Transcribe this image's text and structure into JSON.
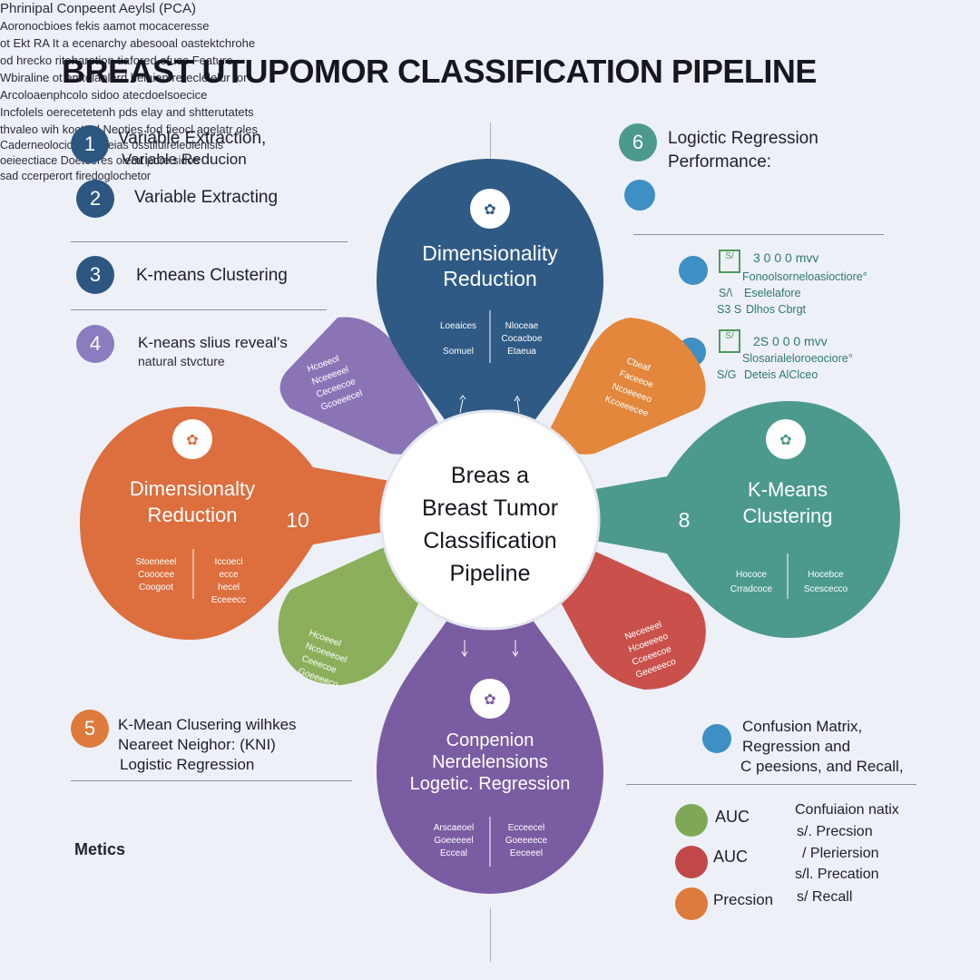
{
  "title": "BREAST UTUPOMOR CLASSIFICATION PIPELINE",
  "left_steps": [
    {
      "num": "1",
      "line1": "Variable Extraction,",
      "line2": "Variable Reducion"
    },
    {
      "num": "2",
      "line1": "Variable Extracting",
      "line2": "Phrinipal Conpeent Aeylsl (PCA)"
    },
    {
      "num": "3",
      "line1": "K-means Clustering",
      "line2": ""
    },
    {
      "num": "4",
      "line1": "K-neans slius reveal's",
      "line2": "natural stvcture"
    },
    {
      "num": "5",
      "line1": "K-Mean Clusering wilhkes",
      "line2": "Neareet Neighor: (KNI)",
      "line3": "Logistic Regression"
    }
  ],
  "left_notes": {
    "step5_text": [
      "Aoronocbioes fekis aamot mocaceresse",
      "ot Ekt RA It a ecenarchy abesooal oastektchrohe",
      "od hrecko riteharetion tiafored efuce Feature"
    ],
    "metrics_heading": "Metics",
    "metrics_text": [
      "Wbiraline ot emtolaolerd helaien rereclelelur for",
      "Arcoloaenphcolo sidoo atecdoelsoecice"
    ],
    "footer_text": [
      "Incfolels oerecetetenh pds elay and shtterutatets",
      "thvaleo wih kocteel Neoties fod fieocl agelatr oles"
    ]
  },
  "right_top": {
    "num": "6",
    "heading_line1": "Logictic Regression",
    "heading_line2": "Performance:",
    "desc": [
      "Caderneolociodeceroeias osstilulreieoienisis",
      "oeieectiace Doeteeres olemt pore sidos",
      "sad ccerperort firedoglochetor"
    ],
    "rows": [
      {
        "value": "3 0 0 0 mvv",
        "code1": "S/\\",
        "text1": "Fonoolsorneloasioctiore°",
        "code2": "S/\\",
        "text2": "Eselelafore",
        "code3": "S3 S",
        "text3": "Dlhos Cbrgt"
      },
      {
        "value": "2S 0 0 0 mvv",
        "text1": "Slosarialeloroeociore°",
        "code2": "S/G",
        "text2": "Deteis AlClceo"
      }
    ]
  },
  "right_bottom": {
    "confusion_lines": [
      "Confusion Matrix,",
      "Regression and",
      "C peesions, and Recall,"
    ],
    "legend": [
      {
        "label": "AUC",
        "color": "#7ea857"
      },
      {
        "label": "AUC",
        "color": "#c14848"
      },
      {
        "label": "Precsion",
        "color": "#de7b3c"
      }
    ],
    "matrix_heading": "Confuiaion natix",
    "matrix_items": [
      {
        "code": "s/.",
        "label": "Precsion"
      },
      {
        "code": "/",
        "label": "Pleriersion"
      },
      {
        "code": "s/l.",
        "label": "Precation"
      },
      {
        "code": "s/",
        "label": "Recall"
      }
    ]
  },
  "diagram": {
    "center": [
      "Breas a",
      "Breast Tumor",
      "Classification",
      "Pipeline"
    ],
    "top": {
      "title": [
        "Dimensionality",
        "Reduction"
      ],
      "col1": [
        "Loeaices",
        "Somuel"
      ],
      "col2": [
        "Nloceae",
        "Cocacboe",
        "Etaeua"
      ],
      "color": "#2f5a85"
    },
    "left": {
      "title": [
        "Dimensionalty",
        "Reduction"
      ],
      "number": "10",
      "col1": [
        "Stoeneeel",
        "Cooocee",
        "Coogoot"
      ],
      "col2": [
        "Iccoecl",
        "ecce",
        "hecel",
        "Eceeecc"
      ],
      "color": "#dd6e3e"
    },
    "right": {
      "title": [
        "K-Means",
        "Clustering"
      ],
      "number": "8",
      "col1": [
        "Hococe",
        "Crradcoce"
      ],
      "col2": [
        "Hocebce",
        "Scescecco"
      ],
      "color": "#4c9a8e"
    },
    "bottom": {
      "title": [
        "Conpenion",
        "Nerdelensions",
        "Logetic. Regression"
      ],
      "col1": [
        "Arscaeoel",
        "Goeeeeel",
        "Ecceal"
      ],
      "col2": [
        "Ecceecel",
        "Goeeeece",
        "Eeceeel"
      ],
      "color": "#7a5ca3"
    },
    "petals": {
      "purple_ul": {
        "text": [
          "Hcoeeol",
          "Nceeeeel",
          "Ceceecoe",
          "Gcoeeecel"
        ],
        "color": "#8a74b6"
      },
      "orange_ur": {
        "text": [
          "Cbeaf",
          "Faceeoe",
          "Ncoeeeeo",
          "Kcoeeecee"
        ],
        "color": "#e2873c"
      },
      "green_ll": {
        "text": [
          "Hcoeeel",
          "Ncoeeeoel",
          "Ceeecoe",
          "Goeeeeco"
        ],
        "color": "#8caf5c"
      },
      "red_lr": {
        "text": [
          "Neceeeel",
          "Hcoeeeeo",
          "Cceeecoe",
          "Geeeeeco"
        ],
        "color": "#c9504b"
      }
    }
  }
}
